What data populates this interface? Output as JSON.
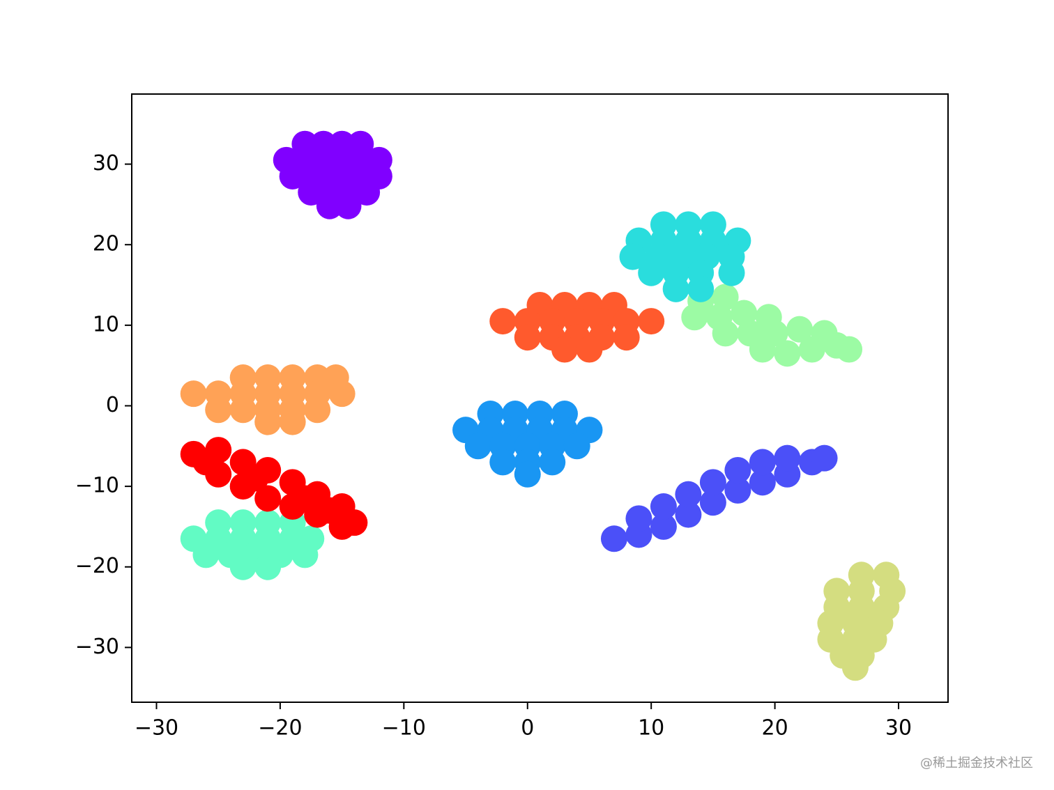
{
  "chart_data": {
    "type": "scatter",
    "xlim": [
      -32,
      34
    ],
    "ylim": [
      -36.8,
      38.7
    ],
    "xticks": [
      {
        "value": -30,
        "label": "−30"
      },
      {
        "value": -20,
        "label": "−20"
      },
      {
        "value": -10,
        "label": "−10"
      },
      0,
      10,
      20,
      30
    ],
    "yticks": [
      {
        "value": -30,
        "label": "−30"
      },
      {
        "value": -20,
        "label": "−20"
      },
      {
        "value": -10,
        "label": "−10"
      },
      0,
      10,
      20,
      30
    ],
    "grid": false,
    "watermark": "@稀土掘金技术社区",
    "series": [
      {
        "color": "#8000ff",
        "x": [
          -18,
          -16.5,
          -15,
          -13.5,
          -19.5,
          -18,
          -16.5,
          -15,
          -13.5,
          -12,
          -19,
          -17.5,
          -16,
          -14.5,
          -13,
          -12,
          -17.5,
          -16,
          -14.5,
          -13,
          -16,
          -14.5
        ],
        "y": [
          32.5,
          32.5,
          32.5,
          32.5,
          30.5,
          30.5,
          30.5,
          30.5,
          30.5,
          30.5,
          28.5,
          28.5,
          28.5,
          28.5,
          28.5,
          28.5,
          26.5,
          26.5,
          26.5,
          26.5,
          24.8,
          24.8
        ]
      },
      {
        "color": "#ffa256",
        "x": [
          -23,
          -21,
          -19,
          -17,
          -15.5,
          -27,
          -25,
          -23,
          -21,
          -19,
          -17,
          -15,
          -25,
          -23,
          -21,
          -19,
          -17,
          -21,
          -19
        ],
        "y": [
          3.5,
          3.5,
          3.5,
          3.5,
          3.5,
          1.5,
          1.5,
          1.5,
          1.5,
          1.5,
          1.5,
          1.5,
          -0.5,
          -0.5,
          -0.5,
          -0.5,
          -0.5,
          -2,
          -2
        ]
      },
      {
        "color": "#62fbc4",
        "x": [
          -25,
          -23,
          -21,
          -19,
          -27,
          -25,
          -23,
          -21,
          -19,
          -17.5,
          -26,
          -24,
          -22,
          -20,
          -18,
          -23,
          -21
        ],
        "y": [
          -14.5,
          -14.5,
          -14.5,
          -14.5,
          -16.5,
          -16.5,
          -16.5,
          -16.5,
          -16.5,
          -16.5,
          -18.5,
          -18.5,
          -18.5,
          -18.5,
          -18.5,
          -20,
          -20
        ]
      },
      {
        "color": "#ff0000",
        "x": [
          -27,
          -25,
          -25,
          -23,
          -23,
          -21,
          -21,
          -19,
          -19,
          -17,
          -17,
          -15,
          -15,
          -14,
          -26,
          -22,
          -18,
          -16
        ],
        "y": [
          -6,
          -5.5,
          -8.5,
          -7,
          -10,
          -8,
          -11.5,
          -9.5,
          -12.5,
          -11,
          -13.5,
          -12.5,
          -15,
          -14.5,
          -7,
          -9,
          -11.5,
          -13
        ]
      },
      {
        "color": "#ff5a2d",
        "x": [
          1,
          3,
          5,
          7,
          -2,
          0,
          2,
          4,
          6,
          8,
          10,
          0,
          2,
          4,
          6,
          8,
          3,
          5
        ],
        "y": [
          12.5,
          12.5,
          12.5,
          12.5,
          10.5,
          10.5,
          10.5,
          10.5,
          10.5,
          10.5,
          10.5,
          8.5,
          8.5,
          8.5,
          8.5,
          8.5,
          7,
          7
        ]
      },
      {
        "color": "#1996f3",
        "x": [
          -3,
          -1,
          1,
          3,
          -5,
          -3,
          -1,
          1,
          3,
          5,
          -4,
          -2,
          0,
          2,
          4,
          -2,
          0,
          2,
          0
        ],
        "y": [
          -1,
          -1,
          -1,
          -1,
          -3,
          -3,
          -3,
          -3,
          -3,
          -3,
          -5,
          -5,
          -5,
          -5,
          -5,
          -7,
          -7,
          -7,
          -8.5
        ]
      },
      {
        "color": "#9cfba4",
        "x": [
          14,
          16,
          13.5,
          15.5,
          17.5,
          19.5,
          16,
          18,
          20,
          22,
          24,
          19,
          21,
          23,
          25,
          26
        ],
        "y": [
          13,
          13.5,
          11,
          11,
          11.5,
          11,
          9,
          9,
          9,
          9.5,
          9,
          7,
          6.5,
          7,
          7.5,
          7
        ]
      },
      {
        "color": "#2adddd",
        "x": [
          11,
          13,
          15,
          9,
          11,
          13,
          15,
          17,
          8.5,
          10.5,
          12.5,
          14.5,
          16.5,
          10,
          12,
          14,
          16.5,
          12,
          14
        ],
        "y": [
          22.5,
          22.5,
          22.5,
          20.5,
          20.5,
          20.5,
          20.5,
          20.5,
          18.5,
          18.5,
          18.5,
          18.5,
          18.5,
          16.5,
          16.5,
          16.5,
          16.5,
          14.5,
          14.5
        ]
      },
      {
        "color": "#4b50f8",
        "x": [
          7,
          9,
          9,
          11,
          11,
          13,
          13,
          15,
          15,
          17,
          17,
          19,
          19,
          21,
          21,
          23,
          24
        ],
        "y": [
          -16.5,
          -16,
          -14,
          -15,
          -12.5,
          -13.5,
          -11,
          -12,
          -9.5,
          -10.5,
          -8,
          -9.5,
          -7,
          -8.5,
          -6.5,
          -7,
          -6.5
        ]
      },
      {
        "color": "#d4dd80",
        "x": [
          27,
          29,
          25,
          27,
          29.5,
          25,
          27,
          29,
          24.5,
          26.5,
          28.5,
          24.5,
          26.5,
          28,
          25.5,
          27,
          26.5
        ],
        "y": [
          -21,
          -21,
          -23,
          -23,
          -23,
          -25,
          -25,
          -25,
          -27,
          -27,
          -27,
          -29,
          -29,
          -29,
          -31,
          -31,
          -32.5
        ]
      }
    ]
  }
}
